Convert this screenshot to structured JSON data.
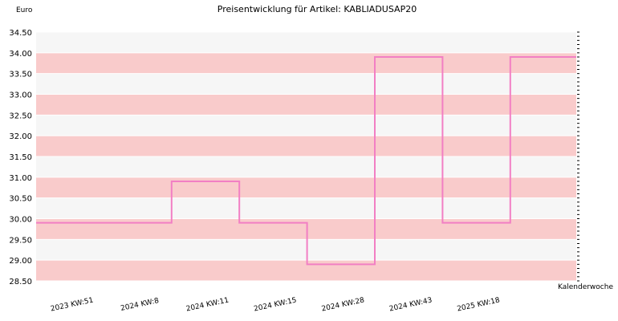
{
  "chart_data": {
    "type": "line",
    "title": "Preisentwicklung für Artikel: KABLIADUSAP20",
    "ylabel": "Euro",
    "xlabel": "Kalenderwoche",
    "categories": [
      "2023 KW:51",
      "2024 KW:8",
      "2024 KW:11",
      "2024 KW:15",
      "2024 KW:28",
      "2024 KW:43",
      "2025 KW:18"
    ],
    "series": [
      {
        "values": [
          29.9,
          30.9,
          29.9,
          28.9,
          33.9,
          29.9,
          33.9
        ]
      }
    ],
    "step": true,
    "ylim": [
      28.5,
      34.5
    ],
    "yticks": [
      "28.50",
      "29.00",
      "29.50",
      "30.00",
      "30.50",
      "31.00",
      "31.50",
      "32.00",
      "32.50",
      "33.00",
      "33.50",
      "34.00",
      "34.50"
    ],
    "colors": {
      "line": "#f27fc4",
      "band_a": "#f9cbcb",
      "band_b": "#f6f6f6",
      "gridline": "#ffffff"
    },
    "grid": true
  }
}
